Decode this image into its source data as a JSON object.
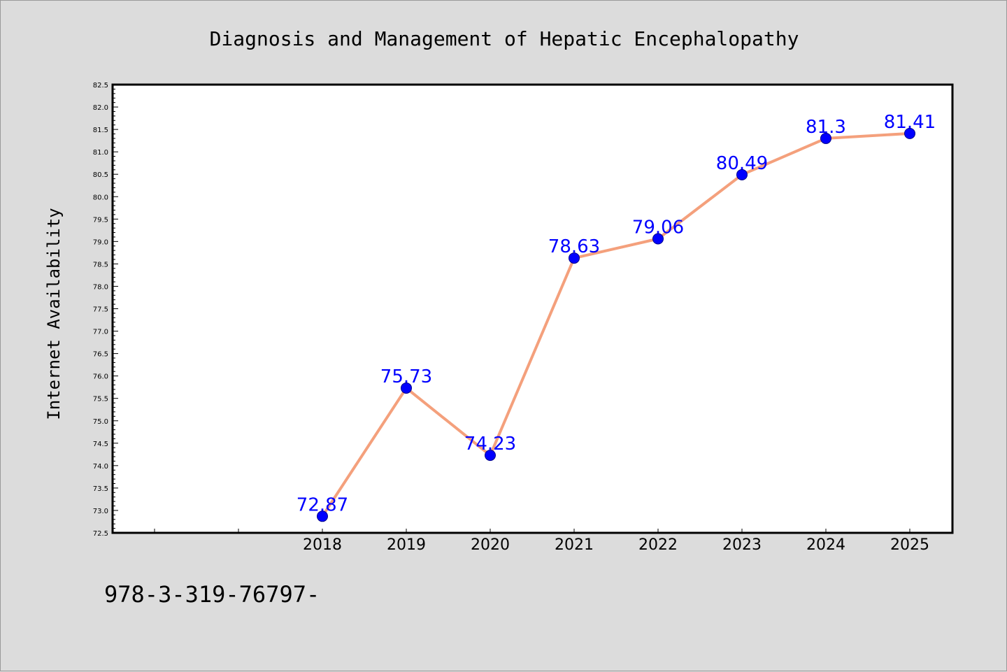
{
  "chart_data": {
    "type": "line",
    "title": "Diagnosis and Management of Hepatic Encephalopathy",
    "xlabel": "",
    "ylabel": "Internet Availability",
    "categories": [
      "2018",
      "2019",
      "2020",
      "2021",
      "2022",
      "2023",
      "2024",
      "2025"
    ],
    "series": [
      {
        "values": [
          72.87,
          75.73,
          74.23,
          78.63,
          79.06,
          80.49,
          81.3,
          81.41
        ],
        "labels": [
          "72.87",
          "75.73",
          "74.23",
          "78.63",
          "79.06",
          "80.49",
          "81.3",
          "81.41"
        ],
        "line_color": "#f4a07c",
        "marker_color": "#0000ff"
      }
    ],
    "ylim": [
      72.5,
      82.5
    ],
    "yticks": [
      "72.5",
      "73.0",
      "73.5",
      "74.0",
      "74.5",
      "75.0",
      "75.5",
      "76.0",
      "76.5",
      "77.0",
      "77.5",
      "78.0",
      "78.5",
      "79.0",
      "79.5",
      "80.0",
      "80.5",
      "81.0",
      "81.5",
      "82.0",
      "82.5"
    ],
    "grid": false,
    "legend": "none",
    "label_color": "#0000ff"
  },
  "footer": {
    "text": "978-3-319-76797-"
  }
}
